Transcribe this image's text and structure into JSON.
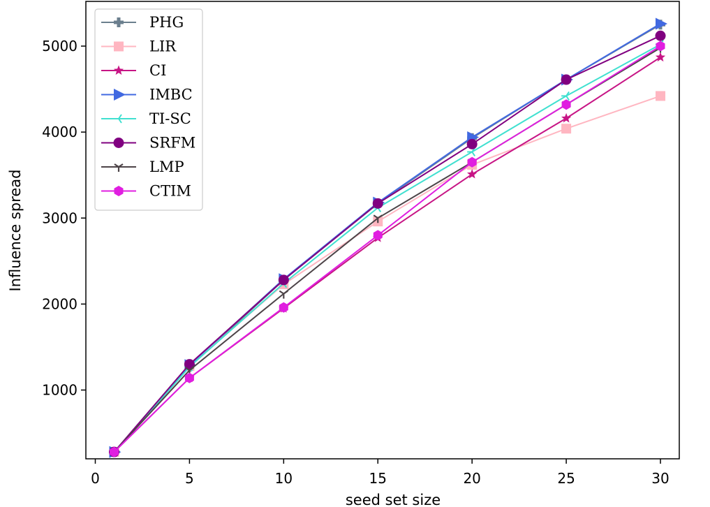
{
  "chart_data": {
    "type": "line",
    "title": "",
    "xlabel": "seed set size",
    "ylabel": "Influence spread",
    "x": [
      1,
      5,
      10,
      15,
      20,
      25,
      30
    ],
    "xlim": [
      -0.5,
      31
    ],
    "ylim": [
      200,
      5520
    ],
    "xticks": [
      0,
      5,
      10,
      15,
      20,
      25,
      30
    ],
    "yticks": [
      1000,
      2000,
      3000,
      4000,
      5000
    ],
    "grid": false,
    "legend_position": "top-left",
    "series": [
      {
        "name": "PHG",
        "color": "#6b7f8e",
        "marker": "plus",
        "values": [
          280,
          1270,
          2280,
          3170,
          3930,
          4610,
          5250
        ]
      },
      {
        "name": "LIR",
        "color": "#ffb6c1",
        "marker": "square",
        "values": [
          280,
          1280,
          2230,
          2960,
          3620,
          4040,
          4420
        ]
      },
      {
        "name": "CI",
        "color": "#c71585",
        "marker": "star",
        "values": [
          280,
          1140,
          1950,
          2770,
          3510,
          4160,
          4870
        ]
      },
      {
        "name": "IMBC",
        "color": "#4169e1",
        "marker": "triangle",
        "values": [
          280,
          1290,
          2290,
          3180,
          3940,
          4610,
          5260
        ]
      },
      {
        "name": "TI-SC",
        "color": "#40e0d0",
        "marker": "tri",
        "values": [
          280,
          1270,
          2240,
          3120,
          3770,
          4420,
          5020
        ]
      },
      {
        "name": "SRFM",
        "color": "#800080",
        "marker": "circle",
        "values": [
          280,
          1300,
          2280,
          3170,
          3860,
          4610,
          5120
        ]
      },
      {
        "name": "LMP",
        "color": "#4d4448",
        "marker": "tri_down",
        "values": [
          280,
          1230,
          2120,
          3000,
          3650,
          4320,
          4980
        ]
      },
      {
        "name": "CTIM",
        "color": "#e01ee0",
        "marker": "hexagon",
        "values": [
          280,
          1140,
          1960,
          2800,
          3650,
          4320,
          5000
        ]
      }
    ]
  }
}
